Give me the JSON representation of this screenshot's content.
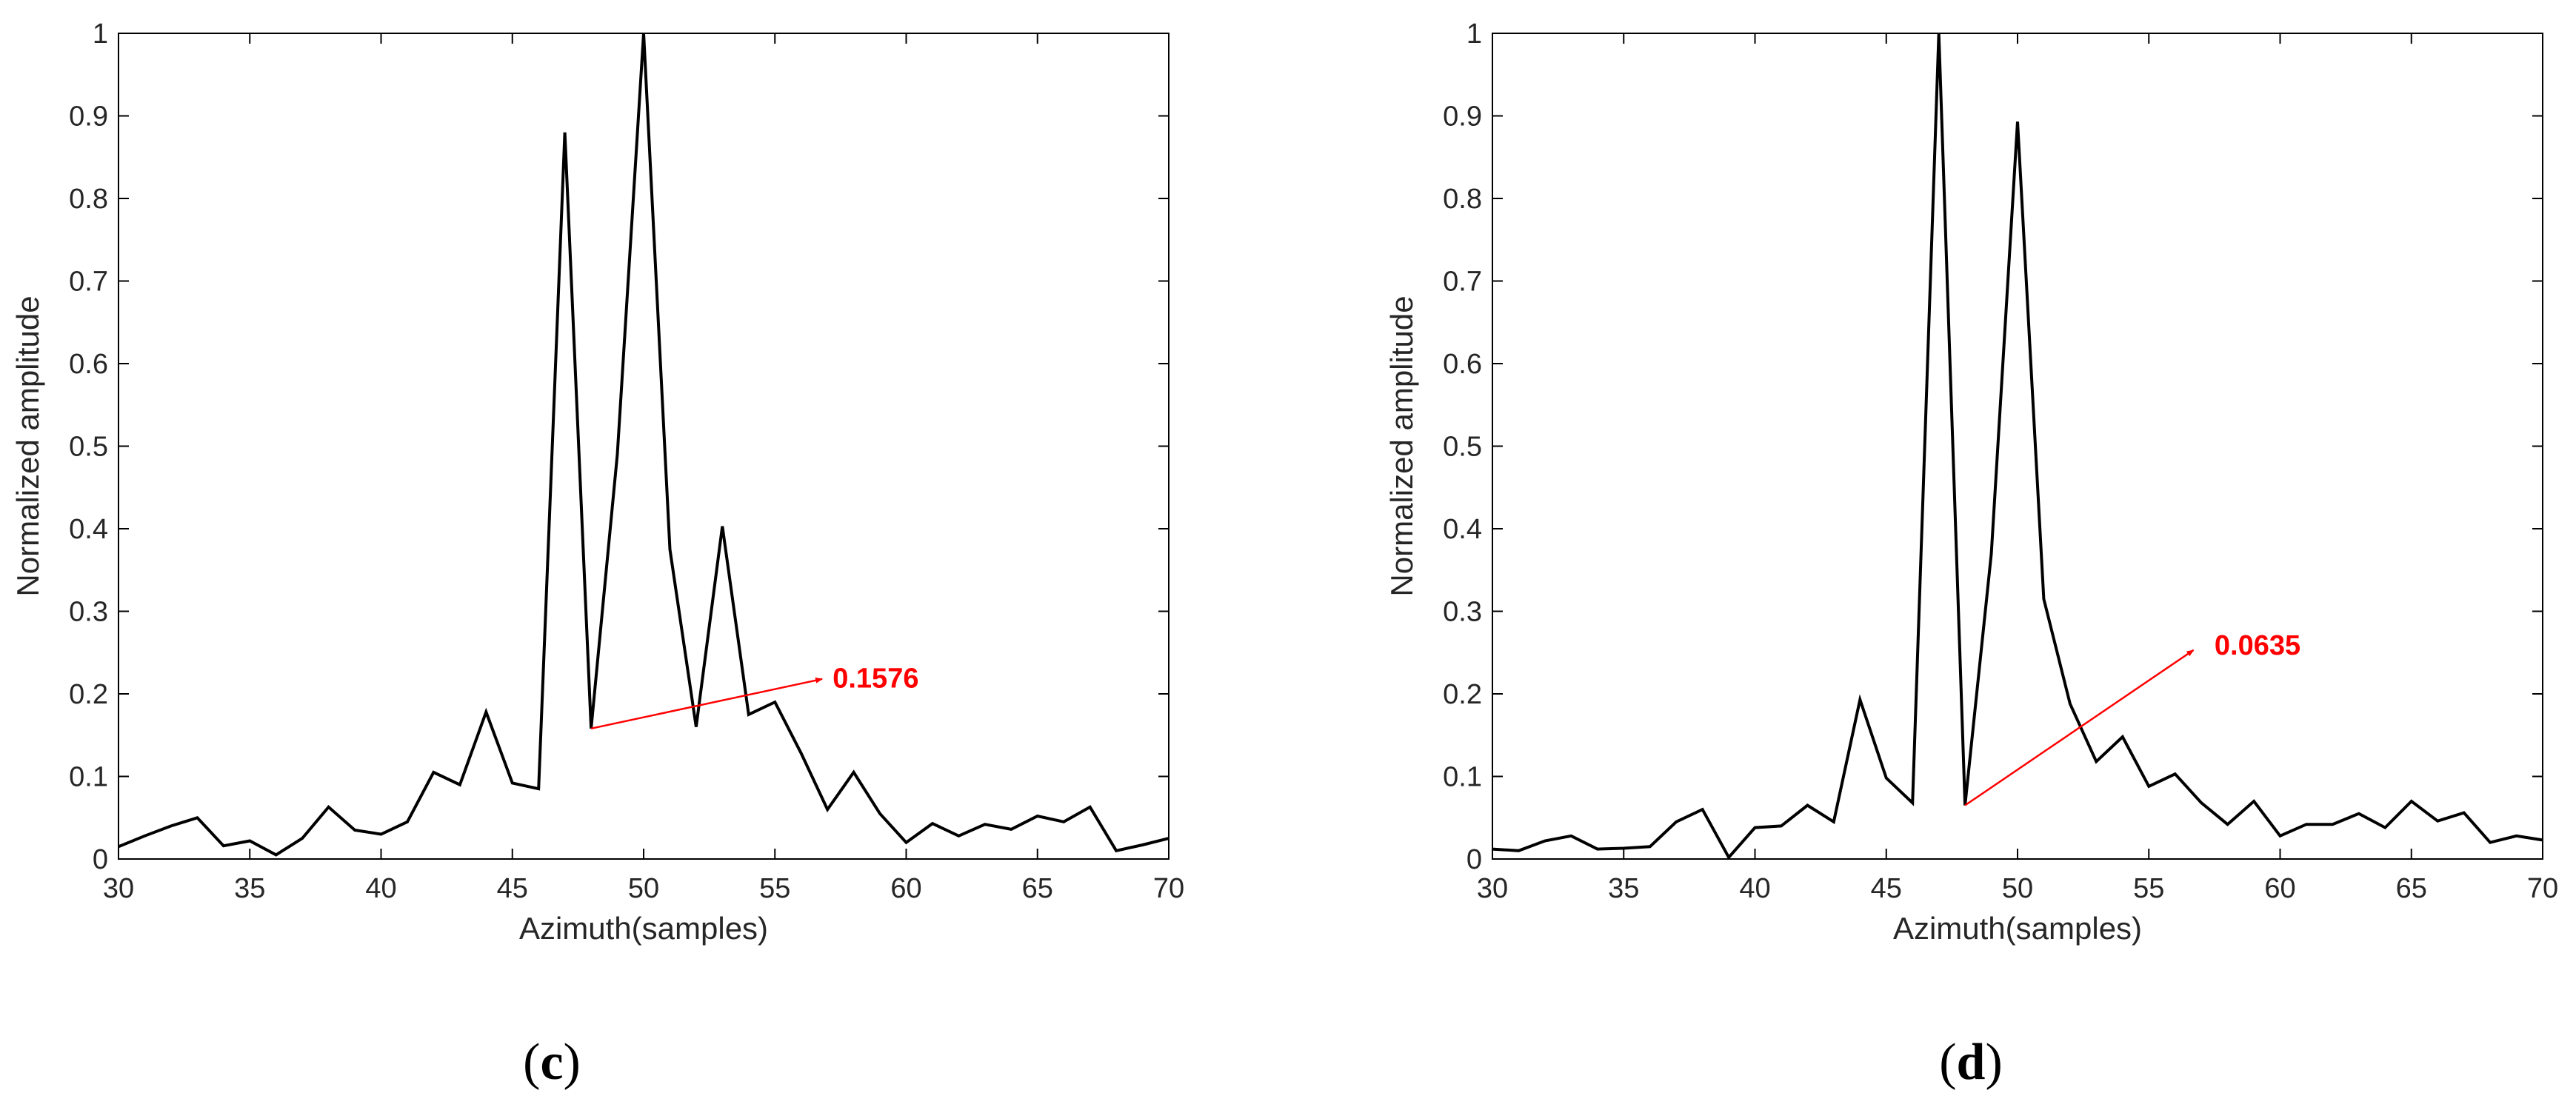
{
  "chart_data": [
    {
      "panel": "c",
      "type": "line",
      "caption": {
        "open": "(",
        "letter": "c",
        "close": ")"
      },
      "xlabel": "Azimuth(samples)",
      "ylabel": "Normalized amplitude",
      "xlim": [
        30,
        70
      ],
      "ylim": [
        0,
        1
      ],
      "xticks": [
        30,
        35,
        40,
        45,
        50,
        55,
        60,
        65,
        70
      ],
      "yticks": [
        0,
        0.1,
        0.2,
        0.3,
        0.4,
        0.5,
        0.6,
        0.7,
        0.8,
        0.9,
        1
      ],
      "ytick_labels": [
        "0",
        "0.1",
        "0.2",
        "0.3",
        "0.4",
        "0.5",
        "0.6",
        "0.7",
        "0.8",
        "0.9",
        "1"
      ],
      "grid": false,
      "line_color": "#000000",
      "x": [
        30,
        31,
        32,
        33,
        34,
        35,
        36,
        37,
        38,
        39,
        40,
        41,
        42,
        43,
        44,
        45,
        46,
        47,
        48,
        49,
        50,
        51,
        52,
        53,
        54,
        55,
        56,
        57,
        58,
        59,
        60,
        61,
        62,
        63,
        64,
        65,
        66,
        67,
        68,
        69,
        70
      ],
      "y": [
        0.015,
        0.028,
        0.04,
        0.05,
        0.016,
        0.022,
        0.005,
        0.025,
        0.063,
        0.035,
        0.03,
        0.045,
        0.105,
        0.09,
        0.178,
        0.092,
        0.085,
        0.88,
        0.158,
        0.49,
        1.0,
        0.375,
        0.16,
        0.403,
        0.175,
        0.19,
        0.128,
        0.06,
        0.105,
        0.055,
        0.02,
        0.043,
        0.028,
        0.042,
        0.036,
        0.052,
        0.045,
        0.063,
        0.01,
        0.017,
        0.025
      ],
      "annotation": {
        "text": "0.1576",
        "color": "#ff0000",
        "arrow_from": [
          48,
          0.158
        ],
        "arrow_to": [
          56.8,
          0.218
        ],
        "text_at": [
          57.2,
          0.22
        ]
      }
    },
    {
      "panel": "d",
      "type": "line",
      "caption": {
        "open": "(",
        "letter": "d",
        "close": ")"
      },
      "xlabel": "Azimuth(samples)",
      "ylabel": "Normalized amplitude",
      "xlim": [
        30,
        70
      ],
      "ylim": [
        0,
        1
      ],
      "xticks": [
        30,
        35,
        40,
        45,
        50,
        55,
        60,
        65,
        70
      ],
      "yticks": [
        0,
        0.1,
        0.2,
        0.3,
        0.4,
        0.5,
        0.6,
        0.7,
        0.8,
        0.9,
        1
      ],
      "ytick_labels": [
        "0",
        "0.1",
        "0.2",
        "0.3",
        "0.4",
        "0.5",
        "0.6",
        "0.7",
        "0.8",
        "0.9",
        "1"
      ],
      "grid": false,
      "line_color": "#000000",
      "x": [
        30,
        31,
        32,
        33,
        34,
        35,
        36,
        37,
        38,
        39,
        40,
        41,
        42,
        43,
        44,
        45,
        46,
        47,
        48,
        49,
        50,
        51,
        52,
        53,
        54,
        55,
        56,
        57,
        58,
        59,
        60,
        61,
        62,
        63,
        64,
        65,
        66,
        67,
        68,
        69,
        70
      ],
      "y": [
        0.012,
        0.01,
        0.022,
        0.028,
        0.012,
        0.013,
        0.015,
        0.045,
        0.06,
        0.002,
        0.038,
        0.04,
        0.065,
        0.045,
        0.193,
        0.098,
        0.068,
        1.0,
        0.065,
        0.37,
        0.893,
        0.315,
        0.188,
        0.118,
        0.148,
        0.088,
        0.103,
        0.068,
        0.042,
        0.07,
        0.028,
        0.042,
        0.042,
        0.055,
        0.038,
        0.07,
        0.046,
        0.056,
        0.02,
        0.028,
        0.023
      ],
      "annotation": {
        "text": "0.0635",
        "color": "#ff0000",
        "arrow_from": [
          48,
          0.065
        ],
        "arrow_to": [
          56.7,
          0.253
        ],
        "text_at": [
          57.5,
          0.26
        ]
      }
    }
  ]
}
